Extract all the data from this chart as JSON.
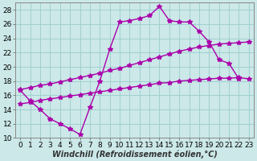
{
  "bg_color": "#cce8e8",
  "grid_color": "#99cccc",
  "line_color": "#aa00aa",
  "marker": "*",
  "markersize": 4,
  "linewidth": 1.0,
  "xlabel": "Windchill (Refroidissement éolien,°C)",
  "xlabel_fontsize": 7.0,
  "tick_fontsize": 6.5,
  "xlim": [
    -0.5,
    23.5
  ],
  "ylim": [
    10,
    29
  ],
  "yticks": [
    10,
    12,
    14,
    16,
    18,
    20,
    22,
    24,
    26,
    28
  ],
  "xticks": [
    0,
    1,
    2,
    3,
    4,
    5,
    6,
    7,
    8,
    9,
    10,
    11,
    12,
    13,
    14,
    15,
    16,
    17,
    18,
    19,
    20,
    21,
    22,
    23
  ],
  "line1_x": [
    0,
    1,
    2,
    3,
    4,
    5,
    6,
    7,
    8,
    9,
    10,
    11,
    12,
    13,
    14,
    15,
    16,
    17,
    18,
    19,
    20,
    21,
    22
  ],
  "line1_y": [
    16.7,
    15.2,
    14.0,
    12.7,
    12.0,
    11.3,
    10.5,
    14.3,
    18.0,
    22.5,
    26.3,
    26.5,
    26.8,
    27.2,
    28.5,
    26.5,
    26.3,
    26.3,
    25.0,
    23.5,
    21.0,
    20.5,
    18.3
  ],
  "line2_x": [
    0,
    1,
    2,
    3,
    4,
    5,
    6,
    7,
    8,
    9,
    10,
    11,
    12,
    13,
    14,
    15,
    16,
    17,
    18,
    19,
    20,
    21,
    22,
    23
  ],
  "line2_y": [
    16.8,
    17.1,
    17.4,
    17.6,
    17.9,
    18.2,
    18.5,
    18.8,
    19.1,
    19.5,
    19.8,
    20.2,
    20.6,
    21.0,
    21.4,
    21.8,
    22.2,
    22.5,
    22.8,
    23.0,
    23.2,
    23.3,
    23.4,
    23.5
  ],
  "line3_x": [
    0,
    1,
    2,
    3,
    4,
    5,
    6,
    7,
    8,
    9,
    10,
    11,
    12,
    13,
    14,
    15,
    16,
    17,
    18,
    19,
    20,
    21,
    22,
    23
  ],
  "line3_y": [
    14.8,
    15.0,
    15.3,
    15.5,
    15.7,
    15.9,
    16.1,
    16.3,
    16.5,
    16.7,
    16.9,
    17.1,
    17.3,
    17.5,
    17.7,
    17.8,
    18.0,
    18.1,
    18.2,
    18.3,
    18.4,
    18.4,
    18.5,
    18.3
  ]
}
